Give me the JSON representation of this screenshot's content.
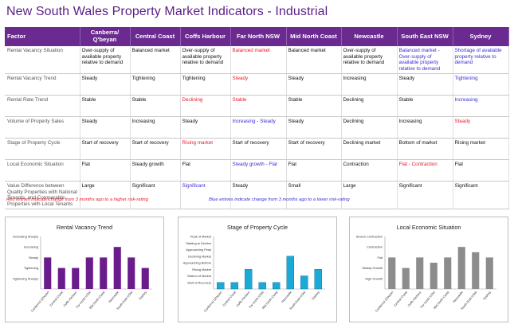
{
  "title": "New South Wales Property Market Indicators - Industrial",
  "table": {
    "headers": [
      "Factor",
      "Canberra/ Q'beyan",
      "Central Coast",
      "Coffs Harbour",
      "Far North NSW",
      "Mid North Coast",
      "Newcastle",
      "South East NSW",
      "Sydney"
    ],
    "rows": [
      {
        "factor": "Rental Vacancy Situation",
        "cells": [
          {
            "t": "Over-supply of available property relative to demand",
            "c": ""
          },
          {
            "t": "Balanced market",
            "c": ""
          },
          {
            "t": "Over-supply of available property relative to demand",
            "c": ""
          },
          {
            "t": "Balanced market",
            "c": "red"
          },
          {
            "t": "Balanced market",
            "c": ""
          },
          {
            "t": "Over-supply of available property relative to demand",
            "c": ""
          },
          {
            "t": "Balanced market - Over-supply of available property relative to demand",
            "c": "blue"
          },
          {
            "t": "Shortage of available property relative to demand",
            "c": "blue"
          }
        ]
      },
      {
        "factor": "Rental Vacancy Trend",
        "cells": [
          {
            "t": "Steady",
            "c": ""
          },
          {
            "t": "Tightening",
            "c": ""
          },
          {
            "t": "Tightening",
            "c": ""
          },
          {
            "t": "Steady",
            "c": "red"
          },
          {
            "t": "Steady",
            "c": ""
          },
          {
            "t": "Increasing",
            "c": ""
          },
          {
            "t": "Steady",
            "c": ""
          },
          {
            "t": "Tightening",
            "c": "blue"
          }
        ]
      },
      {
        "factor": "Rental Rate Trend",
        "cells": [
          {
            "t": "Stable",
            "c": ""
          },
          {
            "t": "Stable",
            "c": ""
          },
          {
            "t": "Declining",
            "c": "red"
          },
          {
            "t": "Stable",
            "c": "red"
          },
          {
            "t": "Stable",
            "c": ""
          },
          {
            "t": "Declining",
            "c": ""
          },
          {
            "t": "Stable",
            "c": ""
          },
          {
            "t": "Increasing",
            "c": "blue"
          }
        ]
      },
      {
        "factor": "Volume of Property Sales",
        "cells": [
          {
            "t": "Steady",
            "c": ""
          },
          {
            "t": "Increasing",
            "c": ""
          },
          {
            "t": "Steady",
            "c": ""
          },
          {
            "t": "Increasing - Steady",
            "c": "blue"
          },
          {
            "t": "Steady",
            "c": ""
          },
          {
            "t": "Declining",
            "c": ""
          },
          {
            "t": "Increasing",
            "c": ""
          },
          {
            "t": "Steady",
            "c": "red"
          }
        ]
      },
      {
        "factor": "Stage of Property Cycle",
        "cells": [
          {
            "t": "Start of recovery",
            "c": ""
          },
          {
            "t": "Start of recovery",
            "c": ""
          },
          {
            "t": "Rising market",
            "c": "red"
          },
          {
            "t": "Start of recovery",
            "c": ""
          },
          {
            "t": "Start of recovery",
            "c": ""
          },
          {
            "t": "Declining market",
            "c": ""
          },
          {
            "t": "Bottom of market",
            "c": ""
          },
          {
            "t": "Rising market",
            "c": ""
          }
        ]
      },
      {
        "factor": "Local Economic Situation",
        "cells": [
          {
            "t": "Flat",
            "c": ""
          },
          {
            "t": "Steady growth",
            "c": ""
          },
          {
            "t": "Flat",
            "c": ""
          },
          {
            "t": "Steady growth - Flat",
            "c": "blue"
          },
          {
            "t": "Flat",
            "c": ""
          },
          {
            "t": "Contraction",
            "c": ""
          },
          {
            "t": "Flat - Contraction",
            "c": "red"
          },
          {
            "t": "Flat",
            "c": ""
          }
        ]
      },
      {
        "factor": "Value Difference between Quality Properties with National Tenants, and Comparable Properties with Local Tenants",
        "cells": [
          {
            "t": "Large",
            "c": ""
          },
          {
            "t": "Significant",
            "c": ""
          },
          {
            "t": "Significant",
            "c": "blue"
          },
          {
            "t": "Steady",
            "c": ""
          },
          {
            "t": "Small",
            "c": ""
          },
          {
            "t": "Large",
            "c": ""
          },
          {
            "t": "Significant",
            "c": ""
          },
          {
            "t": "Significant",
            "c": ""
          }
        ]
      }
    ]
  },
  "notes": {
    "red": "Red entries indicate change from 3 months ago to a higher risk-rating",
    "blue": "Blue entries indicate change from 3 months ago to a lower risk-rating"
  },
  "chart_data": [
    {
      "type": "bar",
      "title": "Rental Vacancy Trend",
      "color": "#6a1b8c",
      "y_levels": [
        "Increasing Sharply",
        "Increasing",
        "Steady",
        "Tightening",
        "Tightening Sharply"
      ],
      "categories": [
        "Canberra/ Q'beyan",
        "Central Coast",
        "Coffs Harbour",
        "Far North NSW",
        "Mid North Coast",
        "Newcastle",
        "South East NSW",
        "Sydney"
      ],
      "values": [
        3,
        2,
        2,
        3,
        3,
        4,
        3,
        2
      ],
      "ylim": [
        0,
        5
      ]
    },
    {
      "type": "bar",
      "title": "Stage of Property Cycle",
      "color": "#1ba9d8",
      "y_levels": [
        "Peak of Market",
        "Starting to Decline",
        "Approaching Peak",
        "Declining Market",
        "Approaching Bottom",
        "Rising Market",
        "Bottom of Market",
        "Start of Recovery"
      ],
      "categories": [
        "Canberra/ Q'beyan",
        "Central Coast",
        "Coffs Harbour",
        "Far North NSW",
        "Mid North Coast",
        "Newcastle",
        "South East NSW",
        "Sydney"
      ],
      "values": [
        1,
        1,
        3,
        1,
        1,
        5,
        2,
        3
      ],
      "ylim": [
        0,
        8
      ]
    },
    {
      "type": "bar",
      "title": "Local Economic Situation",
      "color": "#8c8c8c",
      "y_levels": [
        "Severe Contraction",
        "Contraction",
        "Flat",
        "Steady Growth",
        "High Growth"
      ],
      "categories": [
        "Canberra/ Q'beyan",
        "Central Coast",
        "Coffs Harbour",
        "Far North NSW",
        "Mid North Coast",
        "Newcastle",
        "South East NSW",
        "Sydney"
      ],
      "values": [
        3,
        2,
        3,
        2.5,
        3,
        4,
        3.5,
        3
      ],
      "ylim": [
        0,
        5
      ]
    }
  ]
}
